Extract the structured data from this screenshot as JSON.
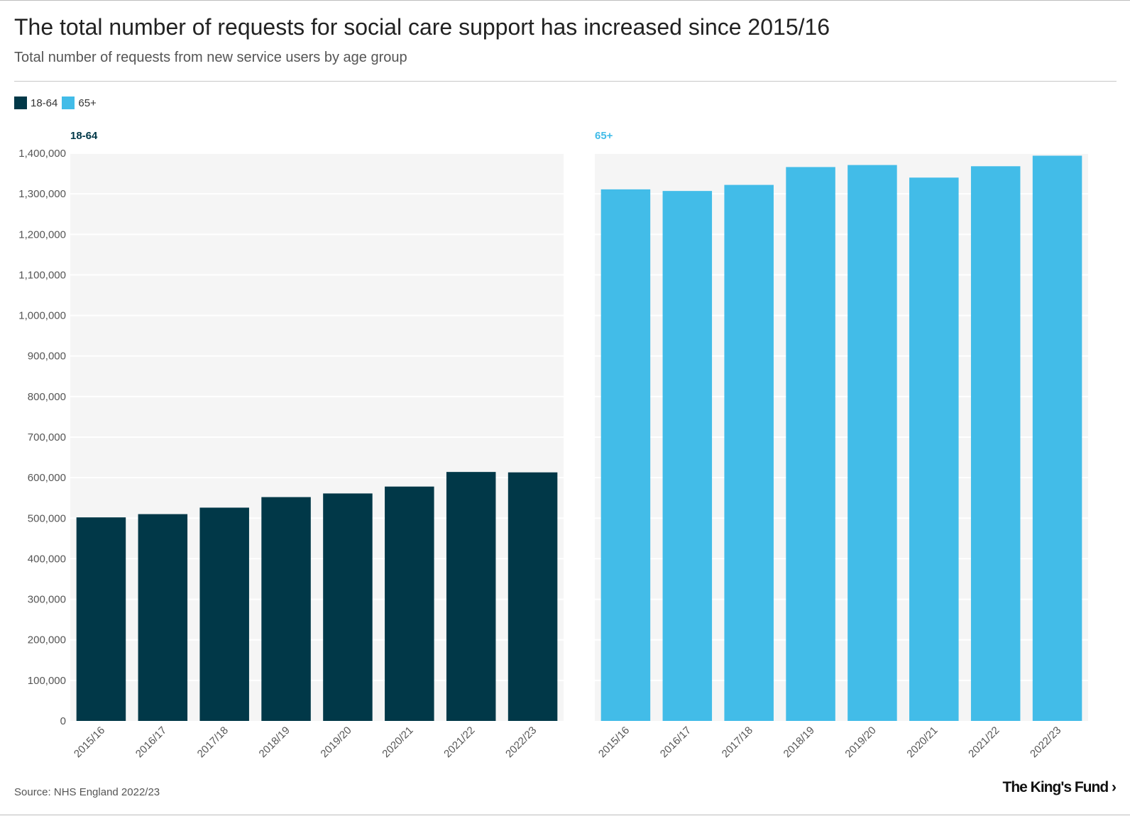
{
  "header": {
    "title": "The total number of requests for social care support has increased since 2015/16",
    "subtitle": "Total number of requests from new service users by age group"
  },
  "footer": {
    "source": "Source: NHS England 2022/23",
    "logo": "The King's Fund ›"
  },
  "colors": {
    "series_18_64": "#013848",
    "series_65_plus": "#42bce8",
    "plot_bg": "#f5f5f5"
  },
  "legend": [
    {
      "label": "18-64",
      "color": "#013848"
    },
    {
      "label": "65+",
      "color": "#42bce8"
    }
  ],
  "chart_data": {
    "type": "bar",
    "categories": [
      "2015/16",
      "2016/17",
      "2017/18",
      "2018/19",
      "2019/20",
      "2020/21",
      "2021/22",
      "2022/23"
    ],
    "ylim": [
      0,
      1400000
    ],
    "yticks": [
      0,
      100000,
      200000,
      300000,
      400000,
      500000,
      600000,
      700000,
      800000,
      900000,
      1000000,
      1100000,
      1200000,
      1300000,
      1400000
    ],
    "ytick_labels": [
      "0",
      "100,000",
      "200,000",
      "300,000",
      "400,000",
      "500,000",
      "600,000",
      "700,000",
      "800,000",
      "900,000",
      "1,000,000",
      "1,100,000",
      "1,200,000",
      "1,300,000",
      "1,400,000"
    ],
    "xlabel": "",
    "ylabel": "",
    "grid": true,
    "series": [
      {
        "name": "18-64",
        "color": "#013848",
        "values": [
          502000,
          510000,
          526000,
          552000,
          561000,
          578000,
          614000,
          613000
        ]
      },
      {
        "name": "65+",
        "color": "#42bce8",
        "values": [
          1311000,
          1307000,
          1322000,
          1366000,
          1371000,
          1340000,
          1368000,
          1394000
        ]
      }
    ]
  }
}
